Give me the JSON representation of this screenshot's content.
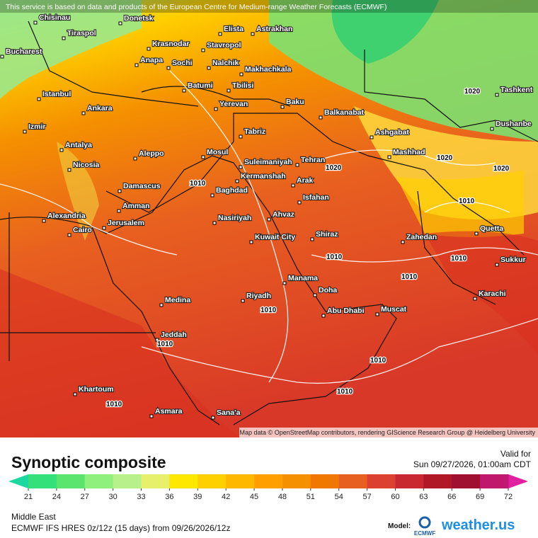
{
  "notice": "This service is based on data and products of the European Centre for Medium-range Weather Forecasts (ECMWF)",
  "attribution": "Map data © OpenStreetMap contributors, rendering GIScience Research Group @ Heidelberg University",
  "cities": [
    "Chisinau",
    "Tiraspol",
    "Bucharest",
    "Donetsk",
    "Krasnodar",
    "Anapa",
    "Sochi",
    "Stavropol",
    "Nalchik",
    "Elista",
    "Astrakhan",
    "Makhachkala",
    "Batumi",
    "Tbilisi",
    "Istanbul",
    "Ankara",
    "Yerevan",
    "Baku",
    "Balkanabat",
    "Izmir",
    "Tabriz",
    "Ashgabat",
    "Dushanbe",
    "Tashkent",
    "Antalya",
    "Aleppo",
    "Mosul",
    "Suleimaniyah",
    "Tehran",
    "Mashhad",
    "Nicosia",
    "Kermanshah",
    "Damascus",
    "Baghdad",
    "Arak",
    "Isfahan",
    "Amman",
    "Jerusalem",
    "Alexandria",
    "Cairo",
    "Nasiriyah",
    "Ahvaz",
    "Shiraz",
    "Zahedan",
    "Quetta",
    "Kuwait City",
    "Sukkur",
    "Manama",
    "Doha",
    "Riyadh",
    "Medina",
    "Abu Dhabi",
    "Muscat",
    "Karachi",
    "Jeddah",
    "Khartoum",
    "Asmara",
    "Sana'a"
  ],
  "isobar_labels": [
    "1010",
    "1020",
    "1020",
    "1020",
    "1010",
    "1010",
    "1010",
    "1010",
    "1010",
    "1010",
    "1010",
    "1010",
    "1010",
    "1020"
  ],
  "footer": {
    "title": "Synoptic composite",
    "valid_label": "Valid for",
    "valid_time": "Sun 09/27/2026, 01:00am CDT",
    "region": "Middle East",
    "model_run": "ECMWF IFS HRES 0z/12z (15 days) from  09/26/2026/12z",
    "model_label": "Model:",
    "ecmwf": "ECMWF",
    "brand": "weather.us"
  },
  "colorbar": {
    "ticks": [
      21,
      24,
      27,
      30,
      33,
      36,
      39,
      42,
      45,
      48,
      51,
      54,
      57,
      60,
      63,
      66,
      69,
      72
    ],
    "colors": [
      "#33e07a",
      "#5be56e",
      "#8ff07e",
      "#b8f08c",
      "#e6f06a",
      "#ffe800",
      "#ffd000",
      "#ffb800",
      "#ffa000",
      "#f59000",
      "#f07800",
      "#e86020",
      "#dc4030",
      "#c82830",
      "#b01828",
      "#a01030",
      "#c0186c"
    ],
    "low_color": "#1bd8a0",
    "high_color": "#e020a0"
  }
}
